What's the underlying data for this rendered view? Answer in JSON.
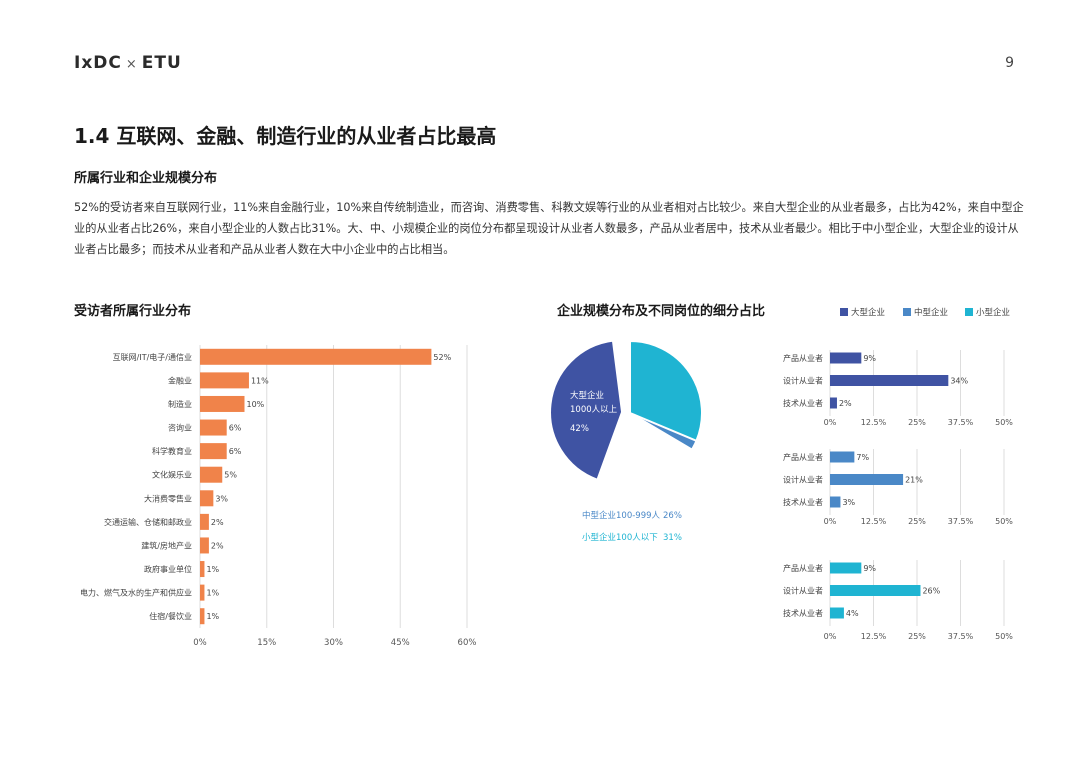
{
  "header": {
    "brand_left": "IxDC",
    "brand_sep": "×",
    "brand_right": "ETU",
    "page_number": "9"
  },
  "section": {
    "title": "1.4 互联网、金融、制造行业的从业者占比最高",
    "subtitle": "所属行业和企业规模分布",
    "paragraph": "52%的受访者来自互联网行业，11%来自金融行业，10%来自传统制造业，而咨询、消费零售、科教文娱等行业的从业者相对占比较少。来自大型企业的从业者最多，占比为42%，来自中型企业的从业者占比26%，来自小型企业的人数占比31%。大、中、小规模企业的岗位分布都呈现设计从业者人数最多，产品从业者居中，技术从业者最少。相比于中小型企业，大型企业的设计从业者占比最多；而技术从业者和产品从业者人数在大中小企业中的占比相当。"
  },
  "colors": {
    "orange": "#f0834a",
    "large": "#3f53a3",
    "medium": "#4a88c7",
    "small": "#1fb4d2",
    "grid": "#dddddd",
    "axis_text": "#555555"
  },
  "chart_data": [
    {
      "type": "bar",
      "orientation": "horizontal",
      "title": "受访者所属行业分布",
      "categories": [
        "互联网/IT/电子/通信业",
        "金融业",
        "制造业",
        "咨询业",
        "科学教育业",
        "文化娱乐业",
        "大消费零售业",
        "交通运输、仓储和邮政业",
        "建筑/房地产业",
        "政府事业单位",
        "电力、燃气及水的生产和供应业",
        "住宿/餐饮业"
      ],
      "values": [
        52,
        11,
        10,
        6,
        6,
        5,
        3,
        2,
        2,
        1,
        1,
        1
      ],
      "value_suffix": "%",
      "xlim": [
        0,
        60
      ],
      "xticks": [
        "0%",
        "15%",
        "30%",
        "45%",
        "60%"
      ],
      "grid": true
    },
    {
      "type": "pie",
      "title": "企业规模分布及不同岗位的细分占比",
      "slices": [
        {
          "label": "大型企业 1000人以上",
          "label_lines": [
            "大型企业",
            "1000人以上"
          ],
          "value": 42,
          "display": "42%"
        },
        {
          "label": "中型企业100-999人",
          "value": 26,
          "display": "26%"
        },
        {
          "label": "小型企业100人以下",
          "value": 31,
          "display": "31%"
        }
      ],
      "legend": [
        "大型企业",
        "中型企业",
        "小型企业"
      ],
      "legend_placement": "top-right"
    },
    {
      "type": "bar",
      "orientation": "horizontal",
      "series_name": "大型企业",
      "categories": [
        "产品从业者",
        "设计从业者",
        "技术从业者"
      ],
      "values": [
        9,
        34,
        2
      ],
      "xlim": [
        0,
        50
      ],
      "xticks": [
        "0%",
        "12.5%",
        "25%",
        "37.5%",
        "50%"
      ]
    },
    {
      "type": "bar",
      "orientation": "horizontal",
      "series_name": "中型企业",
      "categories": [
        "产品从业者",
        "设计从业者",
        "技术从业者"
      ],
      "values": [
        7,
        21,
        3
      ],
      "xlim": [
        0,
        50
      ],
      "xticks": [
        "0%",
        "12.5%",
        "25%",
        "37.5%",
        "50%"
      ]
    },
    {
      "type": "bar",
      "orientation": "horizontal",
      "series_name": "小型企业",
      "categories": [
        "产品从业者",
        "设计从业者",
        "技术从业者"
      ],
      "values": [
        9,
        26,
        4
      ],
      "xlim": [
        0,
        50
      ],
      "xticks": [
        "0%",
        "12.5%",
        "25%",
        "37.5%",
        "50%"
      ]
    }
  ]
}
